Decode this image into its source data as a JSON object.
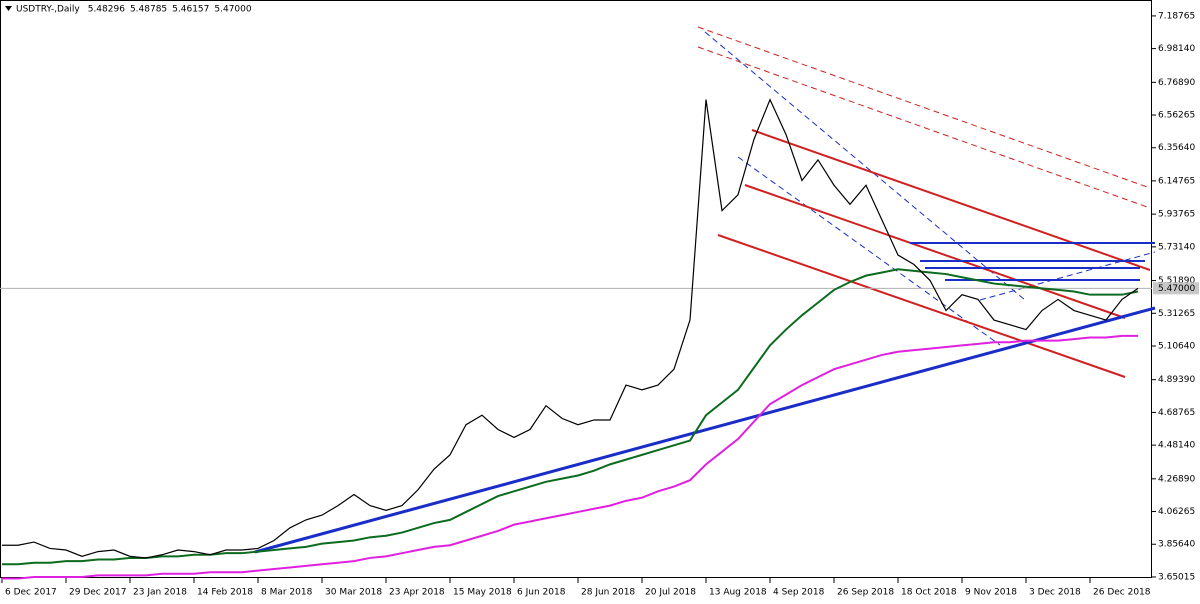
{
  "chart_data": {
    "type": "line",
    "title": "USDTRY-,Daily",
    "ohlc_labels": [
      "5.48296",
      "5.48785",
      "5.46157",
      "5.47000"
    ],
    "categories": [
      "6 Dec 2017",
      null,
      null,
      null,
      "29 Dec 2017",
      null,
      null,
      null,
      "23 Jan 2018",
      null,
      null,
      null,
      "14 Feb 2018",
      null,
      null,
      null,
      "8 Mar 2018",
      null,
      null,
      null,
      "30 Mar 2018",
      null,
      null,
      null,
      "23 Apr 2018",
      null,
      null,
      null,
      "15 May 2018",
      null,
      null,
      null,
      "6 Jun 2018",
      null,
      null,
      null,
      "28 Jun 2018",
      null,
      null,
      null,
      "20 Jul 2018",
      null,
      null,
      null,
      "13 Aug 2018",
      null,
      null,
      null,
      "4 Sep 2018",
      null,
      null,
      null,
      "26 Sep 2018",
      null,
      null,
      null,
      "18 Oct 2018",
      null,
      null,
      null,
      "9 Nov 2018",
      null,
      null,
      null,
      "3 Dec 2018",
      null,
      null,
      null,
      "26 Dec 2018",
      null,
      null,
      null
    ],
    "series": [
      {
        "color": "#000000",
        "values": [
          3.85,
          3.85,
          3.87,
          3.83,
          3.82,
          3.78,
          3.81,
          3.82,
          3.78,
          3.77,
          3.79,
          3.82,
          3.81,
          3.79,
          3.82,
          3.82,
          3.83,
          3.88,
          3.96,
          4.01,
          4.04,
          4.1,
          4.17,
          4.1,
          4.07,
          4.1,
          4.2,
          4.33,
          4.42,
          4.61,
          4.67,
          4.58,
          4.53,
          4.58,
          4.73,
          4.65,
          4.61,
          4.64,
          4.64,
          4.86,
          4.83,
          4.86,
          4.96,
          5.27,
          6.66,
          5.96,
          6.06,
          6.41,
          6.66,
          6.44,
          6.15,
          6.28,
          6.12,
          6.0,
          6.12,
          5.9,
          5.68,
          5.62,
          5.52,
          5.33,
          5.43,
          5.4,
          5.27,
          5.24,
          5.21,
          5.33,
          5.4,
          5.33,
          5.3,
          5.27,
          5.4,
          5.47
        ]
      },
      {
        "color": "#0b6b1e",
        "values": [
          3.73,
          3.73,
          3.74,
          3.74,
          3.75,
          3.75,
          3.76,
          3.76,
          3.77,
          3.77,
          3.78,
          3.78,
          3.79,
          3.79,
          3.8,
          3.8,
          3.81,
          3.82,
          3.83,
          3.84,
          3.86,
          3.87,
          3.88,
          3.9,
          3.91,
          3.93,
          3.96,
          3.99,
          4.01,
          4.06,
          4.11,
          4.16,
          4.19,
          4.22,
          4.25,
          4.27,
          4.29,
          4.32,
          4.36,
          4.39,
          4.42,
          4.45,
          4.48,
          4.51,
          4.67,
          4.75,
          4.83,
          4.97,
          5.11,
          5.21,
          5.3,
          5.38,
          5.46,
          5.51,
          5.55,
          5.57,
          5.59,
          5.58,
          5.57,
          5.56,
          5.54,
          5.52,
          5.5,
          5.49,
          5.48,
          5.47,
          5.46,
          5.45,
          5.43,
          5.43,
          5.43,
          5.45
        ]
      },
      {
        "color": "#e020e0",
        "values": [
          3.64,
          3.64,
          3.65,
          3.65,
          3.65,
          3.65,
          3.66,
          3.66,
          3.66,
          3.66,
          3.67,
          3.67,
          3.67,
          3.68,
          3.68,
          3.68,
          3.69,
          3.7,
          3.71,
          3.72,
          3.73,
          3.74,
          3.75,
          3.77,
          3.78,
          3.8,
          3.82,
          3.84,
          3.85,
          3.88,
          3.91,
          3.94,
          3.98,
          4.0,
          4.02,
          4.04,
          4.06,
          4.08,
          4.1,
          4.13,
          4.15,
          4.19,
          4.22,
          4.26,
          4.36,
          4.44,
          4.52,
          4.63,
          4.74,
          4.8,
          4.86,
          4.91,
          4.96,
          4.99,
          5.02,
          5.05,
          5.07,
          5.08,
          5.09,
          5.1,
          5.11,
          5.12,
          5.13,
          5.13,
          5.14,
          5.14,
          5.14,
          5.15,
          5.16,
          5.16,
          5.17,
          5.17
        ]
      }
    ],
    "ylim": [
      3.612,
      7.288
    ],
    "yticks": [
      7.18765,
      {
        "value": 6.9814,
        "label": "6.98140"
      },
      {
        "value": 6.7689,
        "label": "6.76890"
      },
      6.56265,
      {
        "value": 6.3564,
        "label": "6.35640"
      },
      6.14765,
      5.93765,
      {
        "value": 5.7314,
        "label": "5.73140"
      },
      {
        "value": 5.5189,
        "label": "5.51890"
      },
      5.31265,
      {
        "value": 5.1064,
        "label": "5.10640"
      },
      {
        "value": 4.8939,
        "label": "4.89390"
      },
      4.68765,
      {
        "value": 4.4814,
        "label": "4.48140"
      },
      {
        "value": 4.2689,
        "label": "4.26890"
      },
      4.06265,
      {
        "value": 3.8564,
        "label": "3.85640"
      },
      3.65015
    ],
    "last_price": {
      "value": 5.47,
      "label": "5.47000"
    },
    "grid": false
  }
}
